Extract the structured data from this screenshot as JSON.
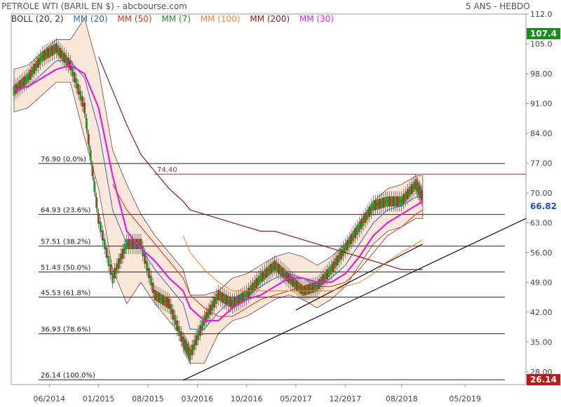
{
  "header": {
    "title": "PETROLE WTI (BARIL EN $) - abcbourse.com",
    "period": "5 ANS - HEBDO"
  },
  "legend": [
    {
      "label": "BOLL (20, 2)",
      "color": "#333333"
    },
    {
      "label": "MM (20)",
      "color": "#3366cc"
    },
    {
      "label": "MM (50)",
      "color": "#e03020"
    },
    {
      "label": "MM (7)",
      "color": "#228b22"
    },
    {
      "label": "MM (100)",
      "color": "#ff7f27"
    },
    {
      "label": "MM (200)",
      "color": "#8b1a1a"
    },
    {
      "label": "MM (30)",
      "color": "#e020e0"
    }
  ],
  "chart_data": {
    "type": "line",
    "title": "PETROLE WTI (BARIL EN $)",
    "ylim": [
      25,
      112
    ],
    "y_ticks": [
      "112.0",
      "105.0",
      "98.00",
      "91.00",
      "84.00",
      "77.00",
      "70.00",
      "63.00",
      "56.00",
      "49.00",
      "42.00",
      "35.00",
      "28.00"
    ],
    "x_ticks": [
      "06/2014",
      "01/2015",
      "08/2015",
      "03/2016",
      "10/2016",
      "05/2017",
      "12/2017",
      "08/2018",
      "05/2019"
    ],
    "last_high": "107.4",
    "last_price": "66.82",
    "last_low": "26.14",
    "resistance": {
      "label": "74.40",
      "value": 74.4
    },
    "fibonacci": [
      {
        "label": "76.90 (0.0%)",
        "value": 76.9
      },
      {
        "label": "64.93 (23.6%)",
        "value": 64.93
      },
      {
        "label": "57.51 (38.2%)",
        "value": 57.51
      },
      {
        "label": "51.43 (50.0%)",
        "value": 51.43
      },
      {
        "label": "45.53 (61.8%)",
        "value": 45.53
      },
      {
        "label": "36.93 (78.6%)",
        "value": 36.93
      },
      {
        "label": "26.14 (100.0%)",
        "value": 26.14
      }
    ],
    "x": [
      "2014-01",
      "2014-03",
      "2014-05",
      "2014-07",
      "2014-09",
      "2014-11",
      "2015-01",
      "2015-03",
      "2015-05",
      "2015-07",
      "2015-09",
      "2015-11",
      "2016-01",
      "2016-02",
      "2016-04",
      "2016-06",
      "2016-08",
      "2016-10",
      "2016-12",
      "2017-02",
      "2017-04",
      "2017-06",
      "2017-08",
      "2017-10",
      "2017-12",
      "2018-02",
      "2018-04",
      "2018-06",
      "2018-08",
      "2018-10",
      "2018-11"
    ],
    "series": [
      {
        "name": "MM (7)",
        "values": [
          94,
          97,
          102,
          104,
          100,
          90,
          64,
          50,
          58,
          58,
          46,
          44,
          35,
          32,
          40,
          46,
          44,
          46,
          50,
          53,
          50,
          47,
          48,
          52,
          57,
          62,
          67,
          68,
          68,
          72,
          69
        ]
      },
      {
        "name": "MM (20)",
        "values": [
          94,
          95,
          98,
          101,
          101,
          97,
          85,
          66,
          58,
          57,
          52,
          48,
          44,
          38,
          38,
          42,
          45,
          46,
          48,
          50,
          51,
          50,
          48,
          50,
          53,
          58,
          63,
          66,
          67,
          69,
          69
        ]
      },
      {
        "name": "MM (30)",
        "values": [
          94,
          95,
          97,
          99,
          100,
          98,
          90,
          74,
          61,
          57,
          54,
          50,
          47,
          43,
          40,
          40,
          43,
          45,
          46,
          48,
          50,
          50,
          49,
          49,
          51,
          55,
          60,
          63,
          65,
          67,
          68
        ]
      },
      {
        "name": "MM (50)",
        "values": [
          null,
          null,
          null,
          null,
          null,
          null,
          null,
          72,
          66,
          62,
          58,
          54,
          50,
          46,
          43,
          41,
          41,
          43,
          45,
          46,
          47,
          48,
          48,
          48,
          49,
          52,
          56,
          60,
          62,
          65,
          66
        ]
      },
      {
        "name": "MM (100)",
        "values": [
          null,
          null,
          null,
          null,
          null,
          null,
          null,
          null,
          null,
          null,
          null,
          null,
          60,
          56,
          52,
          49,
          47,
          47,
          47,
          47,
          47,
          47,
          47,
          47,
          48,
          49,
          51,
          54,
          56,
          58,
          59
        ]
      },
      {
        "name": "MM (200)",
        "values": [
          null,
          null,
          null,
          null,
          null,
          null,
          102,
          94,
          86,
          79,
          75,
          71,
          68,
          66,
          65,
          64,
          63,
          62,
          61,
          61,
          60,
          59,
          58,
          57,
          56,
          55,
          54,
          53,
          52,
          52,
          52
        ]
      }
    ]
  }
}
